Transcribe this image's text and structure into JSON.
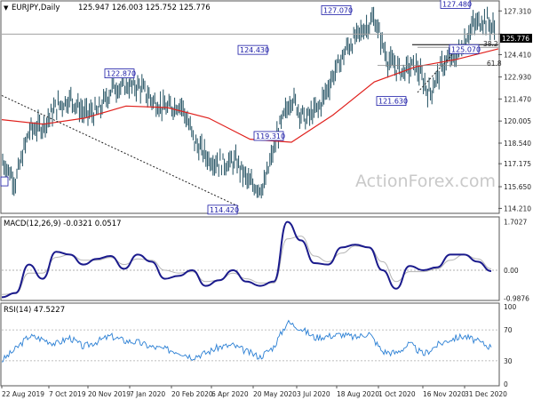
{
  "main_chart": {
    "header": {
      "symbol": "EURJPY,Daily",
      "ohlc": "125.947 126.003 125.752 125.776"
    },
    "watermark": "ActionForex.com",
    "current_price": "125.776",
    "fib_labels": [
      "38.2",
      "61.8"
    ]
  },
  "macd_panel": {
    "header": "MACD(12,26,9) -0.0321 0.0517",
    "ticks": [
      "1.7027",
      "0.00",
      "-0.9876"
    ]
  },
  "rsi_panel": {
    "header": "RSI(14) 47.5227",
    "ticks": [
      "100",
      "70",
      "30",
      "0"
    ]
  },
  "chart_data": [
    {
      "type": "line",
      "title": "EURJPY,Daily",
      "x_tick_labels": [
        "22 Aug 2019",
        "7 Oct 2019",
        "20 Nov 2019",
        "7 Jan 2020",
        "20 Feb 2020",
        "6 Apr 2020",
        "20 May 2020",
        "3 Jul 2020",
        "18 Aug 2020",
        "1 Oct 2020",
        "16 Nov 2020",
        "31 Dec 2020"
      ],
      "y_tick_labels": [
        "127.310",
        "125.776",
        "124.410",
        "122.930",
        "121.470",
        "120.005",
        "118.540",
        "117.175",
        "115.650",
        "114.210"
      ],
      "ylim": [
        114.0,
        127.8
      ],
      "series": [
        {
          "name": "EURJPY",
          "x": [
            "2019-08-22",
            "2019-09-05",
            "2019-09-19",
            "2019-10-03",
            "2019-10-17",
            "2019-10-31",
            "2019-11-14",
            "2019-11-28",
            "2019-12-12",
            "2019-12-26",
            "2020-01-09",
            "2020-01-23",
            "2020-02-06",
            "2020-02-20",
            "2020-03-05",
            "2020-03-19",
            "2020-04-02",
            "2020-04-16",
            "2020-04-30",
            "2020-05-14",
            "2020-05-28",
            "2020-06-11",
            "2020-06-25",
            "2020-07-09",
            "2020-07-23",
            "2020-08-06",
            "2020-08-20",
            "2020-09-03",
            "2020-09-17",
            "2020-10-01",
            "2020-10-15",
            "2020-10-29",
            "2020-11-12",
            "2020-11-26",
            "2020-12-10",
            "2020-12-24",
            "2021-01-07"
          ],
          "values": [
            117.4,
            116.0,
            119.4,
            119.7,
            121.0,
            121.5,
            120.5,
            120.6,
            122.2,
            122.4,
            122.3,
            121.3,
            120.8,
            121.2,
            118.6,
            117.5,
            117.2,
            117.3,
            115.8,
            115.6,
            119.2,
            121.6,
            120.1,
            120.9,
            123.0,
            124.8,
            125.9,
            126.8,
            124.0,
            123.3,
            123.7,
            121.8,
            123.8,
            124.3,
            126.2,
            126.8,
            125.8
          ]
        },
        {
          "name": "SMA",
          "x": [
            "2019-08-22",
            "2019-10-03",
            "2019-11-14",
            "2019-12-26",
            "2020-02-06",
            "2020-03-19",
            "2020-04-30",
            "2020-06-11",
            "2020-07-23",
            "2020-09-03",
            "2020-10-15",
            "2020-11-26",
            "2021-01-07"
          ],
          "values": [
            120.1,
            119.8,
            120.2,
            121.0,
            120.9,
            120.2,
            118.8,
            118.6,
            120.4,
            122.6,
            123.6,
            124.1,
            124.8
          ]
        }
      ],
      "annotations": [
        "127.070",
        "127.480",
        "124.430",
        "122.870",
        "119.310",
        "114.420",
        "121.630",
        "125.070"
      ]
    },
    {
      "type": "line",
      "title": "MACD(12,26,9) -0.0321 0.0517",
      "ylim": [
        -1.0,
        1.75
      ],
      "series": [
        {
          "name": "MACD",
          "values": [
            -0.95,
            -0.8,
            0.2,
            -0.3,
            0.65,
            0.55,
            0.2,
            0.4,
            0.5,
            0.05,
            0.55,
            0.3,
            -0.3,
            -0.2,
            0.0,
            -0.55,
            -0.35,
            0.0,
            -0.4,
            -0.55,
            -0.4,
            1.7,
            1.05,
            0.25,
            0.2,
            0.8,
            0.9,
            0.8,
            0.0,
            -0.65,
            0.15,
            0.0,
            0.1,
            0.55,
            0.55,
            0.3,
            -0.03
          ]
        },
        {
          "name": "Signal",
          "values": [
            -0.85,
            -0.82,
            -0.1,
            -0.1,
            0.45,
            0.55,
            0.35,
            0.35,
            0.45,
            0.2,
            0.4,
            0.35,
            0.0,
            -0.1,
            -0.05,
            -0.4,
            -0.35,
            -0.1,
            -0.3,
            -0.45,
            -0.45,
            1.1,
            1.2,
            0.5,
            0.3,
            0.6,
            0.85,
            0.8,
            0.3,
            -0.4,
            -0.05,
            -0.05,
            0.05,
            0.35,
            0.55,
            0.4,
            0.05
          ]
        }
      ]
    },
    {
      "type": "line",
      "title": "RSI(14) 47.5227",
      "ylim": [
        0,
        100
      ],
      "series": [
        {
          "name": "RSI",
          "values": [
            30,
            45,
            62,
            58,
            52,
            60,
            48,
            55,
            62,
            56,
            54,
            48,
            45,
            42,
            35,
            40,
            48,
            50,
            42,
            35,
            48,
            80,
            72,
            60,
            62,
            64,
            60,
            66,
            42,
            40,
            52,
            38,
            50,
            58,
            62,
            55,
            47.5
          ]
        }
      ]
    }
  ]
}
